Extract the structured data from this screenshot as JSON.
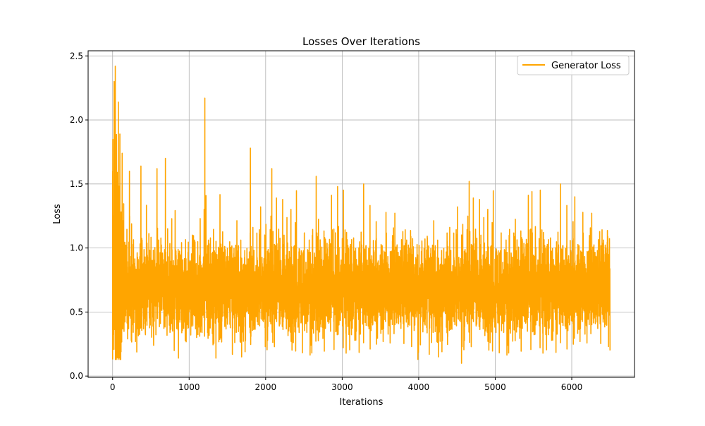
{
  "chart_data": {
    "type": "line",
    "title": "Losses Over Iterations",
    "xlabel": "Iterations",
    "ylabel": "Loss",
    "xlim": [
      -320,
      6820
    ],
    "ylim": [
      -0.01,
      2.54
    ],
    "xticks": [
      0,
      1000,
      2000,
      3000,
      4000,
      5000,
      6000
    ],
    "yticks": [
      0.0,
      0.5,
      1.0,
      1.5,
      2.0,
      2.5
    ],
    "ytick_labels": [
      "0.0",
      "0.5",
      "1.0",
      "1.5",
      "2.0",
      "2.5"
    ],
    "grid": true,
    "legend_position": "top-right",
    "series": [
      {
        "name": "Generator Loss",
        "color": "#ffa500",
        "total_points": 6500,
        "x_range": [
          0,
          6500
        ],
        "noise_band": {
          "typical_min": 0.3,
          "typical_max": 1.2,
          "mean": 0.68
        },
        "early_phase": {
          "x_end": 150,
          "values_range": [
            0.13,
            2.42
          ]
        },
        "notable_values": [
          {
            "x": 0,
            "y": 0.13
          },
          {
            "x": 10,
            "y": 1.22
          },
          {
            "x": 20,
            "y": 2.3
          },
          {
            "x": 35,
            "y": 2.42
          },
          {
            "x": 60,
            "y": 0.3
          },
          {
            "x": 75,
            "y": 2.14
          },
          {
            "x": 95,
            "y": 1.89
          },
          {
            "x": 110,
            "y": 0.19
          },
          {
            "x": 125,
            "y": 1.74
          },
          {
            "x": 220,
            "y": 1.6
          },
          {
            "x": 370,
            "y": 1.64
          },
          {
            "x": 580,
            "y": 1.62
          },
          {
            "x": 690,
            "y": 1.7
          },
          {
            "x": 860,
            "y": 0.14
          },
          {
            "x": 1205,
            "y": 2.17
          },
          {
            "x": 1350,
            "y": 0.14
          },
          {
            "x": 1800,
            "y": 1.78
          },
          {
            "x": 2080,
            "y": 1.62
          },
          {
            "x": 2660,
            "y": 1.56
          },
          {
            "x": 2940,
            "y": 1.48
          },
          {
            "x": 3990,
            "y": 0.13
          },
          {
            "x": 4560,
            "y": 0.1
          },
          {
            "x": 4660,
            "y": 1.52
          },
          {
            "x": 5480,
            "y": 1.44
          },
          {
            "x": 6040,
            "y": 1.4
          },
          {
            "x": 6500,
            "y": 0.2
          }
        ]
      }
    ]
  }
}
